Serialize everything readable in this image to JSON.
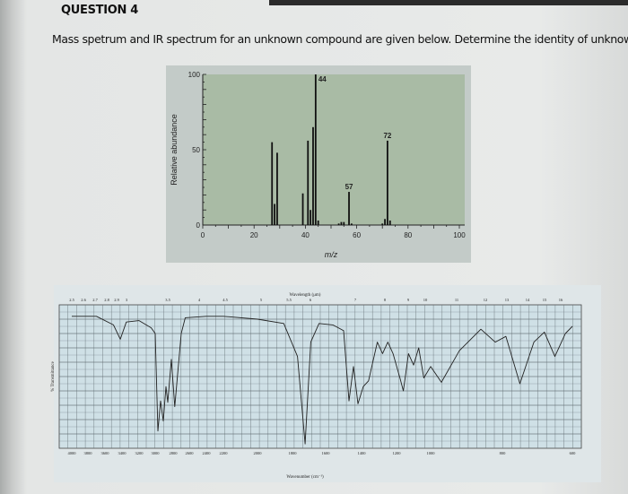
{
  "question": {
    "title": "QUESTION 4",
    "text": "Mass spetrum and IR spectrum for an unknown compound are given below. Determine the identity of unknown."
  },
  "chart_data": [
    {
      "type": "bar",
      "title": "",
      "xlabel": "m/z",
      "ylabel": "Relative abundance",
      "xlim": [
        0,
        100
      ],
      "ylim": [
        0,
        100
      ],
      "x_ticks": [
        "0",
        "20",
        "40",
        "60",
        "80",
        "100"
      ],
      "y_ticks": [
        "0",
        "50",
        "100"
      ],
      "peaks": [
        {
          "mz": 27,
          "abundance": 55
        },
        {
          "mz": 28,
          "abundance": 14
        },
        {
          "mz": 29,
          "abundance": 48
        },
        {
          "mz": 39,
          "abundance": 21
        },
        {
          "mz": 41,
          "abundance": 56
        },
        {
          "mz": 42,
          "abundance": 10
        },
        {
          "mz": 43,
          "abundance": 65
        },
        {
          "mz": 44,
          "abundance": 100
        },
        {
          "mz": 45,
          "abundance": 3
        },
        {
          "mz": 53,
          "abundance": 1
        },
        {
          "mz": 54,
          "abundance": 2
        },
        {
          "mz": 55,
          "abundance": 2
        },
        {
          "mz": 57,
          "abundance": 22
        },
        {
          "mz": 58,
          "abundance": 1
        },
        {
          "mz": 70,
          "abundance": 1
        },
        {
          "mz": 71,
          "abundance": 4
        },
        {
          "mz": 72,
          "abundance": 56
        },
        {
          "mz": 73,
          "abundance": 3
        }
      ],
      "peak_labels": [
        {
          "mz": 44,
          "label": "44"
        },
        {
          "mz": 57,
          "label": "57"
        },
        {
          "mz": 72,
          "label": "72"
        }
      ],
      "colors": {
        "plot_background": "#a9bba5",
        "bars": "#111111"
      }
    },
    {
      "type": "line",
      "title": "",
      "xlabel": "Wavenumber (cm⁻¹)",
      "top_xlabel": "Wavelength (μm)",
      "ylabel": "% Transmittance",
      "ylim": [
        0,
        100
      ],
      "grid": true,
      "x_ticks": [
        "4000",
        "3800",
        "3600",
        "3400",
        "3200",
        "3000",
        "2800",
        "2600",
        "2400",
        "2200",
        "2000",
        "1800",
        "1600",
        "1400",
        "1200",
        "1000",
        "800",
        "600"
      ],
      "top_ticks": [
        "2.5",
        "2.6",
        "2.7",
        "2.8",
        "2.9",
        "3",
        "3.5",
        "4",
        "4.5",
        "5",
        "5.5",
        "6",
        "7",
        "8",
        "9",
        "10",
        "11",
        "12",
        "13",
        "14",
        "15",
        "16"
      ],
      "series": [
        {
          "points": [
            [
              4000,
              92
            ],
            [
              3700,
              92
            ],
            [
              3500,
              86
            ],
            [
              3420,
              76
            ],
            [
              3350,
              88
            ],
            [
              3200,
              89
            ],
            [
              3050,
              84
            ],
            [
              3000,
              80
            ],
            [
              2970,
              12
            ],
            [
              2940,
              33
            ],
            [
              2910,
              19
            ],
            [
              2880,
              43
            ],
            [
              2860,
              32
            ],
            [
              2820,
              62
            ],
            [
              2780,
              29
            ],
            [
              2700,
              80
            ],
            [
              2650,
              91
            ],
            [
              2400,
              92
            ],
            [
              2200,
              92
            ],
            [
              2000,
              90
            ],
            [
              1850,
              87
            ],
            [
              1770,
              64
            ],
            [
              1724,
              3
            ],
            [
              1690,
              74
            ],
            [
              1640,
              87
            ],
            [
              1560,
              86
            ],
            [
              1500,
              82
            ],
            [
              1470,
              33
            ],
            [
              1445,
              57
            ],
            [
              1420,
              31
            ],
            [
              1390,
              43
            ],
            [
              1360,
              47
            ],
            [
              1310,
              74
            ],
            [
              1280,
              66
            ],
            [
              1250,
              74
            ],
            [
              1220,
              66
            ],
            [
              1180,
              49
            ],
            [
              1160,
              40
            ],
            [
              1130,
              66
            ],
            [
              1100,
              58
            ],
            [
              1070,
              70
            ],
            [
              1040,
              49
            ],
            [
              1000,
              57
            ],
            [
              970,
              46
            ],
            [
              920,
              68
            ],
            [
              860,
              83
            ],
            [
              820,
              74
            ],
            [
              790,
              78
            ],
            [
              750,
              45
            ],
            [
              710,
              74
            ],
            [
              680,
              81
            ],
            [
              650,
              64
            ],
            [
              620,
              80
            ],
            [
              600,
              85
            ]
          ]
        }
      ],
      "colors": {
        "plot_background": "#cfe0e6",
        "grid": "#5f6b70",
        "line": "#222222"
      }
    }
  ]
}
